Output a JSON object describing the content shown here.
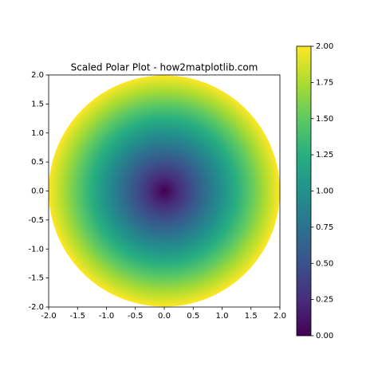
{
  "chart_data": {
    "type": "polar_heatmap",
    "title": "Scaled Polar Plot - how2matplotlib.com",
    "r_max": 2,
    "colormap": "viridis",
    "xlim": [
      -2,
      2
    ],
    "ylim": [
      -2,
      2
    ],
    "xticks": [
      {
        "value": -2,
        "label": "-2.0"
      },
      -1.5,
      {
        "value": -1,
        "label": "-1.0"
      },
      -0.5,
      {
        "value": 0,
        "label": "0.0"
      },
      0.5,
      {
        "value": 1,
        "label": "1.0"
      },
      1.5,
      {
        "value": 2,
        "label": "2.0"
      }
    ],
    "yticks": [
      {
        "value": -2,
        "label": "-2.0"
      },
      -1.5,
      {
        "value": -1,
        "label": "-1.0"
      },
      -0.5,
      {
        "value": 0,
        "label": "0.0"
      },
      0.5,
      {
        "value": 1,
        "label": "1.0"
      },
      1.5,
      {
        "value": 2,
        "label": "2.0"
      }
    ],
    "clim": [
      0,
      2
    ],
    "cticks": [
      {
        "value": 0,
        "label": "0.00"
      },
      0.25,
      {
        "value": 0.5,
        "label": "0.50"
      },
      0.75,
      {
        "value": 1,
        "label": "1.00"
      },
      1.25,
      {
        "value": 1.5,
        "label": "1.50"
      },
      1.75,
      {
        "value": 2,
        "label": "2.00"
      }
    ]
  }
}
